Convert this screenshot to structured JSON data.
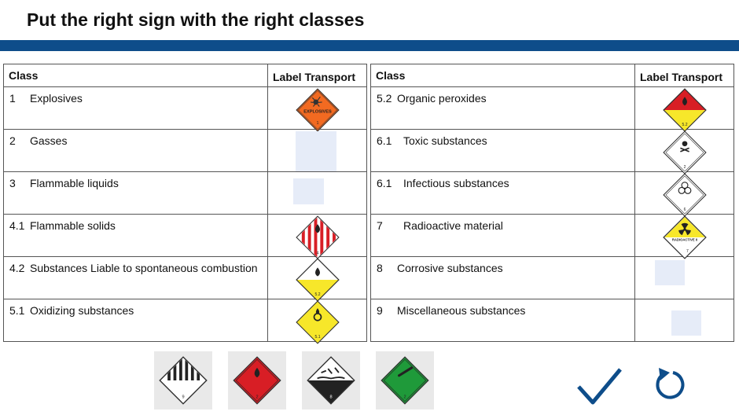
{
  "title": "Put the right sign with the right classes",
  "tables": {
    "left": {
      "header_class": "Class",
      "header_label": "Label Transport",
      "rows": [
        {
          "num": "1",
          "name": "Explosives"
        },
        {
          "num": "2",
          "name": "Gasses"
        },
        {
          "num": "3",
          "name": "Flammable liquids"
        },
        {
          "num": "4.1",
          "name": "Flammable solids"
        },
        {
          "num": "4.2",
          "name": "Substances Liable to spontaneous combustion"
        },
        {
          "num": "5.1",
          "name": "Oxidizing substances"
        }
      ]
    },
    "right": {
      "header_class": "Class",
      "header_label": "Label Transport",
      "rows": [
        {
          "num": "5.2",
          "name": "Organic peroxides"
        },
        {
          "num": "6.1",
          "name": "Toxic substances"
        },
        {
          "num": "6.1",
          "name": "Infectious substances"
        },
        {
          "num": "7",
          "name": "Radioactive material"
        },
        {
          "num": "8",
          "name": "Corrosive substances"
        },
        {
          "num": "9",
          "name": "Miscellaneous substances"
        }
      ]
    }
  },
  "sign_text": {
    "explosives_word": "EXPLOSIVES",
    "explosives_num": "1",
    "flam_solid_num": "4",
    "spont_num": "5.2",
    "oxid_num": "5.1",
    "organic_num": "5.2",
    "toxic_num": "2",
    "infect_num": "6",
    "radio_word": "RADIOACTIVE II",
    "radio_num": "7",
    "misc_num": "9",
    "flam_gas_num": "2",
    "corrosive_num": "8",
    "nonflam_gas_num": "2"
  },
  "icons": {
    "check": "check-icon",
    "reset": "reset-icon"
  },
  "colors": {
    "band": "#0e4d8a",
    "slot": "#e6ecf8",
    "check": "#0e4d8a"
  }
}
